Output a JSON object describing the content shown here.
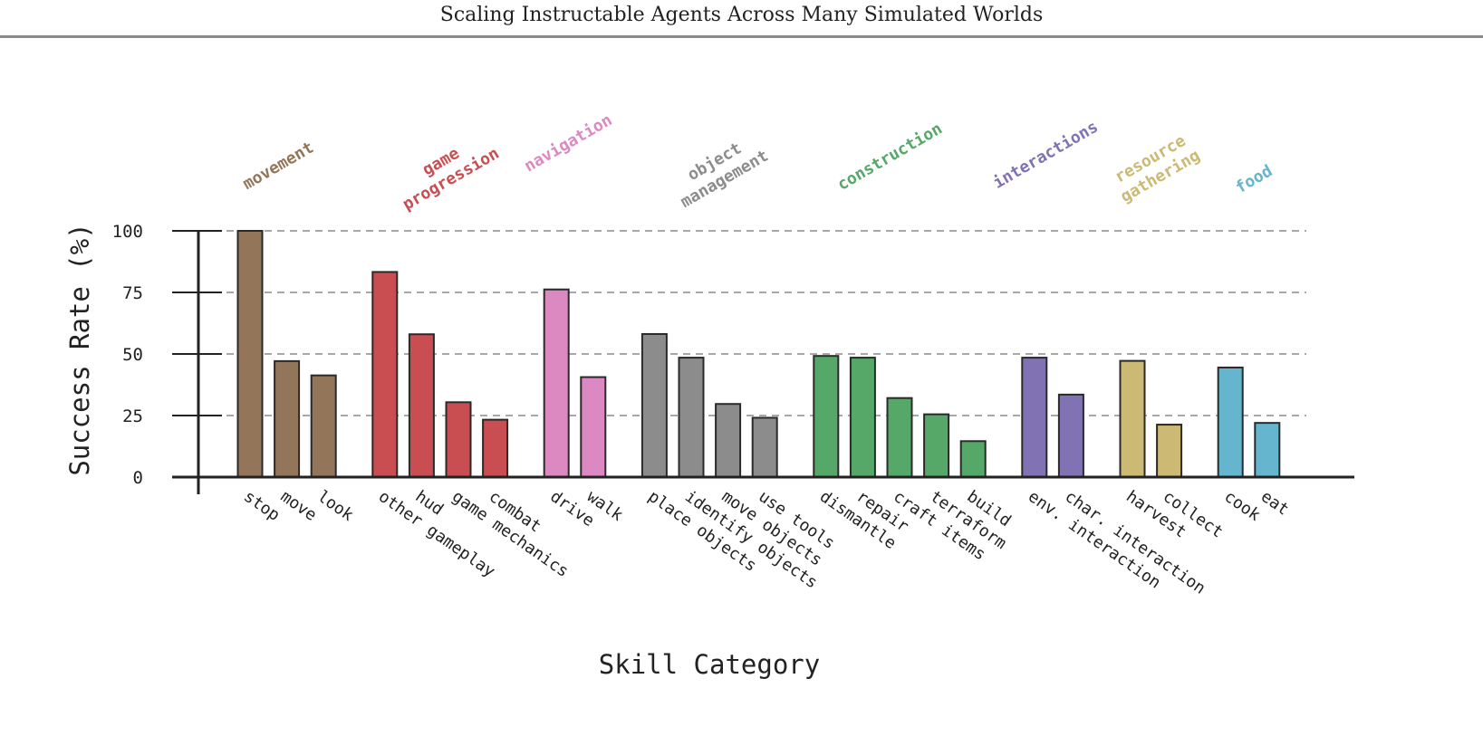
{
  "header": {
    "title": "Scaling Instructable Agents Across Many Simulated Worlds"
  },
  "chart_data": {
    "type": "bar",
    "title": "",
    "xlabel": "Skill Category",
    "ylabel": "Success Rate (%)",
    "ylim": [
      0,
      100
    ],
    "yticks": [
      "0",
      "25",
      "50",
      "75",
      "100"
    ],
    "grid": "horizontal dashed at 25, 50, 75, 100",
    "groups": [
      {
        "name": "movement",
        "label_lines": [
          "movement"
        ],
        "color": "#937659",
        "categories": [
          "stop",
          "move",
          "look"
        ],
        "values": [
          100,
          47.1,
          41.3
        ]
      },
      {
        "name": "game progression",
        "label_lines": [
          "game",
          "progression"
        ],
        "color": "#c84e52",
        "categories": [
          "other gameplay",
          "hud",
          "game mechanics",
          "combat"
        ],
        "values": [
          83.3,
          58.0,
          30.4,
          23.3
        ]
      },
      {
        "name": "navigation",
        "label_lines": [
          "navigation"
        ],
        "color": "#dc89c1",
        "categories": [
          "drive",
          "walk"
        ],
        "values": [
          76.2,
          40.6
        ]
      },
      {
        "name": "object management",
        "label_lines": [
          "object",
          "management"
        ],
        "color": "#8c8c8c",
        "categories": [
          "place objects",
          "identify objects",
          "move objects",
          "use tools"
        ],
        "values": [
          58.1,
          48.5,
          29.7,
          24.1
        ]
      },
      {
        "name": "construction",
        "label_lines": [
          "construction"
        ],
        "color": "#55a868",
        "categories": [
          "dismantle",
          "repair",
          "craft items",
          "terraform",
          "build"
        ],
        "values": [
          49.2,
          48.5,
          32.1,
          25.5,
          14.6
        ]
      },
      {
        "name": "interactions",
        "label_lines": [
          "interactions"
        ],
        "color": "#8172b3",
        "categories": [
          "env. interaction",
          "char. interaction"
        ],
        "values": [
          48.5,
          33.5
        ]
      },
      {
        "name": "resource gathering",
        "label_lines": [
          "resource",
          "gathering"
        ],
        "color": "#ccb974",
        "categories": [
          "harvest",
          "collect"
        ],
        "values": [
          47.2,
          21.3
        ]
      },
      {
        "name": "food",
        "label_lines": [
          "food"
        ],
        "color": "#64b5cd",
        "categories": [
          "cook",
          "eat"
        ],
        "values": [
          44.5,
          22.0
        ]
      }
    ]
  }
}
